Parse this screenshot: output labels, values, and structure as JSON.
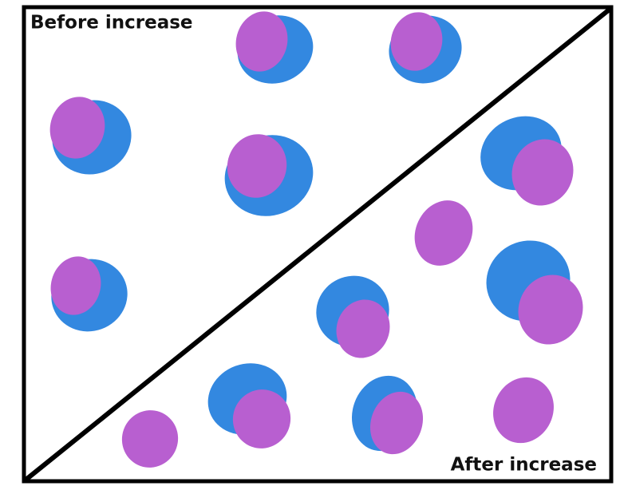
{
  "labels": {
    "before": "Before increase",
    "after": "After increase"
  }
}
